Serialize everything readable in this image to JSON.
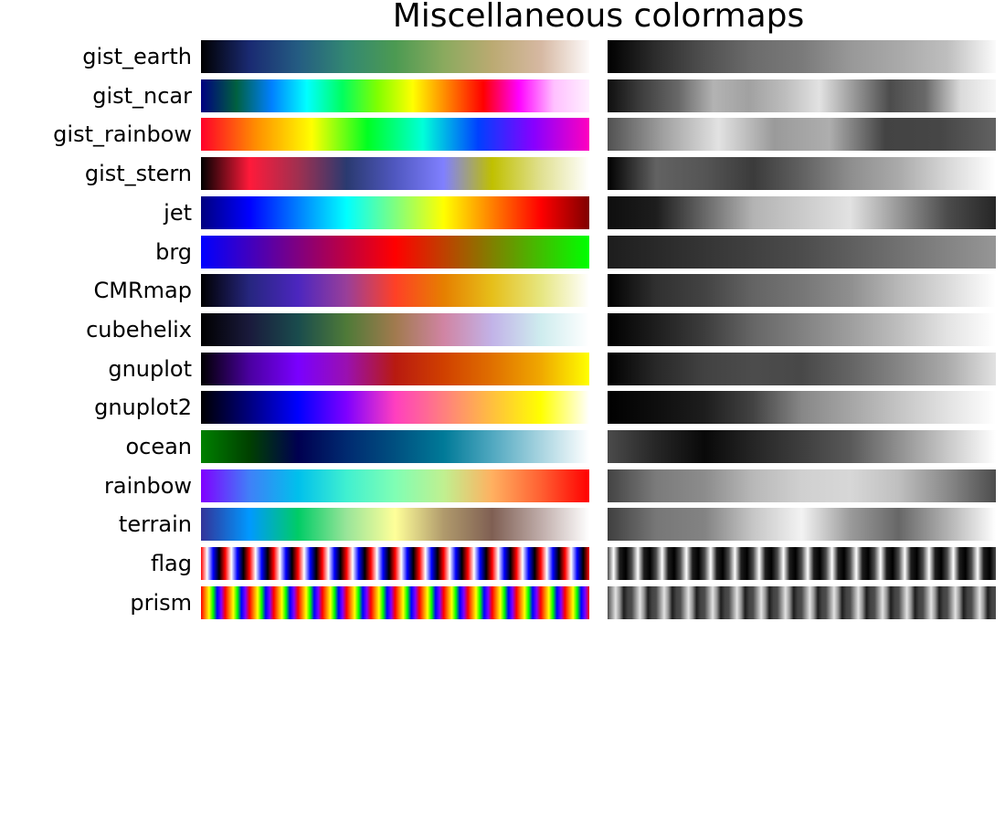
{
  "chart_data": {
    "type": "heatmap",
    "title": "Miscellaneous colormaps",
    "columns": [
      "color",
      "grayscale"
    ],
    "grid": false,
    "colormaps": [
      {
        "name": "gist_earth",
        "stops": [
          "#000000",
          "#1a2a72",
          "#245c82",
          "#338872",
          "#4c9a52",
          "#8aaa5e",
          "#bbaa72",
          "#d6b8a2",
          "#fdfafa"
        ]
      },
      {
        "name": "gist_ncar",
        "stops": [
          "#000080",
          "#006040",
          "#0080ff",
          "#00ffff",
          "#00ff60",
          "#80ff00",
          "#ffff00",
          "#ff8000",
          "#ff0000",
          "#ff00ff",
          "#ffc0ff",
          "#fff0ff"
        ]
      },
      {
        "name": "gist_rainbow",
        "stops": [
          "#ff0029",
          "#ff8f00",
          "#ffff00",
          "#00ff22",
          "#00ffd9",
          "#0040ff",
          "#8800ff",
          "#ff00bf"
        ]
      },
      {
        "name": "gist_stern",
        "stops": [
          "#000000",
          "#ff1a3a",
          "#a03050",
          "#2a3a70",
          "#5058c0",
          "#8080ff",
          "#c0c000",
          "#e0e090",
          "#ffffff"
        ]
      },
      {
        "name": "jet",
        "stops": [
          "#00007f",
          "#0000ff",
          "#007fff",
          "#00ffff",
          "#7fff7f",
          "#ffff00",
          "#ff7f00",
          "#ff0000",
          "#7f0000"
        ]
      },
      {
        "name": "brg",
        "stops": [
          "#0000ff",
          "#800080",
          "#ff0000",
          "#808000",
          "#00ff00"
        ]
      },
      {
        "name": "CMRmap",
        "stops": [
          "#000000",
          "#26267f",
          "#4c26bf",
          "#993f99",
          "#ff4026",
          "#e67f00",
          "#e6bf1a",
          "#e6e680",
          "#ffffff"
        ]
      },
      {
        "name": "cubehelix",
        "stops": [
          "#000000",
          "#1a1a3c",
          "#1a4c4d",
          "#4f7a38",
          "#a17a4e",
          "#d084a3",
          "#c2b3e8",
          "#ceecee",
          "#ffffff"
        ]
      },
      {
        "name": "gnuplot",
        "stops": [
          "#000000",
          "#4a00a0",
          "#7a00ff",
          "#9a10b0",
          "#b81a10",
          "#d04000",
          "#e07000",
          "#f0a800",
          "#ffff00"
        ]
      },
      {
        "name": "gnuplot2",
        "stops": [
          "#000000",
          "#00007f",
          "#0000ff",
          "#7f00ff",
          "#ff3fbf",
          "#ff7f7f",
          "#ffbf3f",
          "#ffff00",
          "#ffffff"
        ]
      },
      {
        "name": "ocean",
        "stops": [
          "#008000",
          "#004000",
          "#000050",
          "#002a70",
          "#005080",
          "#007a98",
          "#50a8c0",
          "#a8d4e0",
          "#ffffff"
        ]
      },
      {
        "name": "rainbow",
        "stops": [
          "#8000ff",
          "#4080f8",
          "#00c0ec",
          "#40f0d0",
          "#80feb4",
          "#c0f090",
          "#ffb060",
          "#ff6032",
          "#ff0000"
        ]
      },
      {
        "name": "terrain",
        "stops": [
          "#333399",
          "#0099ff",
          "#00cc66",
          "#99e599",
          "#ffff99",
          "#b09a6c",
          "#7f5f53",
          "#bfaca9",
          "#ffffff"
        ]
      },
      {
        "name": "flag",
        "stops": [
          "#ff0000",
          "#ffffff",
          "#0000ff",
          "#000000"
        ],
        "repeat": 16
      },
      {
        "name": "prism",
        "stops": [
          "#ff0000",
          "#ff8000",
          "#ffff00",
          "#00ff00",
          "#0000ff",
          "#8000ff"
        ],
        "repeat": 16
      }
    ]
  }
}
